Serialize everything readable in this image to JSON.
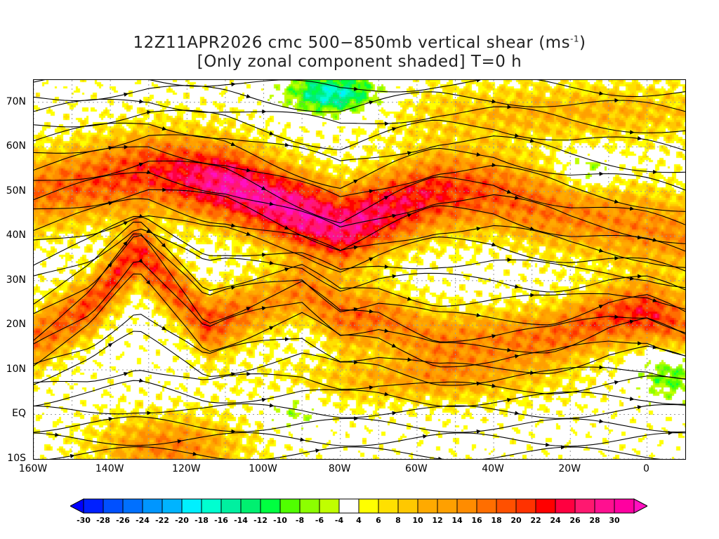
{
  "title": {
    "line1": "12Z11APR2026 cmc 500−850mb vertical shear (ms",
    "line1_sup": "-1",
    "line1_end": ")",
    "line2": "[Only zonal component shaded] T=0 h"
  },
  "axes": {
    "lat_labels": [
      "70N",
      "60N",
      "50N",
      "40N",
      "30N",
      "20N",
      "10N",
      "EQ",
      "10S"
    ],
    "lat_values": [
      70,
      60,
      50,
      40,
      30,
      20,
      10,
      0,
      -10
    ],
    "lon_labels": [
      "160W",
      "140W",
      "120W",
      "100W",
      "80W",
      "60W",
      "40W",
      "20W",
      "0"
    ],
    "lon_values": [
      -160,
      -140,
      -120,
      -100,
      -80,
      -60,
      -40,
      -20,
      0
    ],
    "lon_range": [
      -160,
      10
    ],
    "lat_range": [
      -10,
      75
    ]
  },
  "colorbar": {
    "labels": [
      "-30",
      "-28",
      "-26",
      "-24",
      "-22",
      "-20",
      "-18",
      "-16",
      "-14",
      "-12",
      "-10",
      "-8",
      "-6",
      "-4",
      "4",
      "6",
      "8",
      "10",
      "12",
      "14",
      "16",
      "18",
      "20",
      "22",
      "24",
      "26",
      "28",
      "30"
    ],
    "colors": [
      "#0020ff",
      "#0050ff",
      "#0070ff",
      "#0096ff",
      "#00b4ff",
      "#00f0ff",
      "#00ffd0",
      "#00f0a0",
      "#00f070",
      "#00ff40",
      "#50ff00",
      "#8cff00",
      "#c0ff00",
      "#ffffff",
      "#ffff00",
      "#ffe000",
      "#ffc800",
      "#ffaa00",
      "#ffa000",
      "#ff8c00",
      "#ff6e00",
      "#ff5000",
      "#ff3200",
      "#ff0000",
      "#ff0040",
      "#ff1870",
      "#ff1090",
      "#ff00a0"
    ],
    "under_color": "#0000ff",
    "over_color": "#ff10c0"
  }
}
